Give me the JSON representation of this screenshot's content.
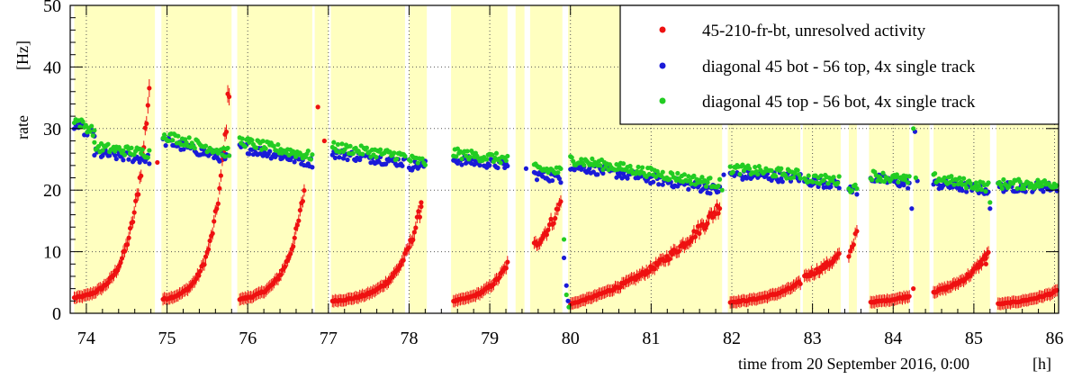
{
  "chart_data": {
    "type": "scatter",
    "title": "",
    "xlabel": "time from 20 September 2016, 0:00",
    "xunit": "[h]",
    "ylabel": "rate",
    "yunit": "[Hz]",
    "xlim": [
      73.8,
      86.05
    ],
    "ylim": [
      0,
      50
    ],
    "x_ticks": [
      74,
      75,
      76,
      77,
      78,
      79,
      80,
      81,
      82,
      83,
      84,
      85,
      86
    ],
    "y_ticks": [
      0,
      10,
      20,
      30,
      40,
      50
    ],
    "grid": "dotted",
    "legend": "top-right",
    "colors": {
      "red": "#ee1111",
      "blue": "#1a1ad8",
      "green": "#22cc22",
      "band": "#ffffc0"
    },
    "bands": [
      [
        73.85,
        74.85
      ],
      [
        74.93,
        75.8
      ],
      [
        75.87,
        76.8
      ],
      [
        76.83,
        77.0
      ],
      [
        77.03,
        77.95
      ],
      [
        78.0,
        78.22
      ],
      [
        78.52,
        79.22
      ],
      [
        79.32,
        79.43
      ],
      [
        79.5,
        79.9
      ],
      [
        79.97,
        81.88
      ],
      [
        81.95,
        82.85
      ],
      [
        82.88,
        83.35
      ],
      [
        83.45,
        83.55
      ],
      [
        83.7,
        84.2
      ],
      [
        84.25,
        84.45
      ],
      [
        84.5,
        85.2
      ],
      [
        85.28,
        86.05
      ]
    ],
    "series": [
      {
        "name": "45-210-fr-bt, unresolved activity",
        "color": "#ee1111",
        "segments": [
          {
            "x0": 73.85,
            "x1": 74.78,
            "y0": 2.5,
            "y1": 37.0,
            "k": 4.5
          },
          {
            "x0": 74.95,
            "x1": 75.77,
            "y0": 2.3,
            "y1": 37.0,
            "k": 4.5
          },
          {
            "x0": 75.9,
            "x1": 76.7,
            "y0": 2.3,
            "y1": 20.0,
            "k": 3.8
          },
          {
            "x0": 77.05,
            "x1": 78.15,
            "y0": 2.0,
            "y1": 17.5,
            "k": 4.0
          },
          {
            "x0": 78.55,
            "x1": 79.22,
            "y0": 2.0,
            "y1": 8.0,
            "k": 2.5
          },
          {
            "x0": 79.55,
            "x1": 79.88,
            "y0": 11.0,
            "y1": 18.0,
            "k": 1.0
          },
          {
            "x0": 80.0,
            "x1": 81.85,
            "y0": 1.5,
            "y1": 17.5,
            "k": 1.5
          },
          {
            "x0": 81.98,
            "x1": 82.85,
            "y0": 1.8,
            "y1": 5.0,
            "k": 2.0
          },
          {
            "x0": 82.9,
            "x1": 83.33,
            "y0": 6.0,
            "y1": 9.5,
            "k": 1.0
          },
          {
            "x0": 83.45,
            "x1": 83.55,
            "y0": 9.0,
            "y1": 14.0,
            "k": 1.0
          },
          {
            "x0": 83.72,
            "x1": 84.2,
            "y0": 1.8,
            "y1": 2.8,
            "k": 1.0
          },
          {
            "x0": 84.5,
            "x1": 85.18,
            "y0": 3.5,
            "y1": 10.0,
            "k": 2.0
          },
          {
            "x0": 85.3,
            "x1": 86.03,
            "y0": 1.5,
            "y1": 3.6,
            "k": 1.5
          }
        ],
        "extra_points": [
          [
            74.88,
            24.5
          ],
          [
            76.87,
            33.5
          ],
          [
            76.95,
            28.0
          ],
          [
            78.15,
            18.0
          ],
          [
            84.25,
            4.0
          ],
          [
            85.15,
            8.0
          ]
        ]
      },
      {
        "name": "diagonal 45 bot - 56 top, 4x single track",
        "color": "#1a1ad8",
        "segments": [
          {
            "x0": 73.85,
            "x1": 74.1,
            "y0": 30.5,
            "y1": 29.0
          },
          {
            "x0": 74.1,
            "x1": 74.78,
            "y0": 26.0,
            "y1": 25.0
          },
          {
            "x0": 74.95,
            "x1": 75.77,
            "y0": 28.0,
            "y1": 25.0
          },
          {
            "x0": 75.9,
            "x1": 76.8,
            "y0": 27.0,
            "y1": 24.5
          },
          {
            "x0": 77.05,
            "x1": 77.95,
            "y0": 26.0,
            "y1": 24.5
          },
          {
            "x0": 78.0,
            "x1": 78.2,
            "y0": 24.0,
            "y1": 24.0
          },
          {
            "x0": 78.55,
            "x1": 79.22,
            "y0": 25.0,
            "y1": 24.0
          },
          {
            "x0": 79.55,
            "x1": 79.88,
            "y0": 22.5,
            "y1": 22.0
          },
          {
            "x0": 80.0,
            "x1": 81.85,
            "y0": 24.0,
            "y1": 20.0
          },
          {
            "x0": 81.98,
            "x1": 82.85,
            "y0": 22.5,
            "y1": 22.0
          },
          {
            "x0": 82.9,
            "x1": 83.33,
            "y0": 21.5,
            "y1": 21.0
          },
          {
            "x0": 83.45,
            "x1": 83.55,
            "y0": 20.0,
            "y1": 20.0
          },
          {
            "x0": 83.72,
            "x1": 84.2,
            "y0": 22.0,
            "y1": 21.0
          },
          {
            "x0": 84.5,
            "x1": 85.18,
            "y0": 21.0,
            "y1": 20.0
          },
          {
            "x0": 85.3,
            "x1": 86.03,
            "y0": 20.5,
            "y1": 20.5
          }
        ],
        "extra_points": [
          [
            79.92,
            9.0
          ],
          [
            79.95,
            4.5
          ],
          [
            79.97,
            2.0
          ],
          [
            84.23,
            17.0
          ],
          [
            84.27,
            29.5
          ],
          [
            84.3,
            21.5
          ],
          [
            85.2,
            17.0
          ],
          [
            81.9,
            22.5
          ],
          [
            79.45,
            23.5
          ]
        ]
      },
      {
        "name": "diagonal 45 top - 56 bot, 4x single track",
        "color": "#22cc22",
        "segments": [
          {
            "x0": 73.85,
            "x1": 74.1,
            "y0": 31.5,
            "y1": 29.5
          },
          {
            "x0": 74.1,
            "x1": 74.78,
            "y0": 27.0,
            "y1": 26.0
          },
          {
            "x0": 74.95,
            "x1": 75.77,
            "y0": 29.0,
            "y1": 26.0
          },
          {
            "x0": 75.9,
            "x1": 76.8,
            "y0": 28.0,
            "y1": 25.5
          },
          {
            "x0": 77.05,
            "x1": 77.95,
            "y0": 27.0,
            "y1": 25.5
          },
          {
            "x0": 78.0,
            "x1": 78.2,
            "y0": 25.0,
            "y1": 24.5
          },
          {
            "x0": 78.55,
            "x1": 79.22,
            "y0": 26.0,
            "y1": 25.0
          },
          {
            "x0": 79.55,
            "x1": 79.88,
            "y0": 23.5,
            "y1": 23.0
          },
          {
            "x0": 80.0,
            "x1": 81.85,
            "y0": 25.0,
            "y1": 21.0
          },
          {
            "x0": 81.98,
            "x1": 82.85,
            "y0": 23.5,
            "y1": 22.5
          },
          {
            "x0": 82.9,
            "x1": 83.33,
            "y0": 22.0,
            "y1": 21.5
          },
          {
            "x0": 83.45,
            "x1": 83.55,
            "y0": 20.5,
            "y1": 20.5
          },
          {
            "x0": 83.72,
            "x1": 84.2,
            "y0": 22.5,
            "y1": 21.5
          },
          {
            "x0": 84.5,
            "x1": 85.18,
            "y0": 22.0,
            "y1": 20.5
          },
          {
            "x0": 85.3,
            "x1": 86.03,
            "y0": 21.0,
            "y1": 21.0
          }
        ],
        "extra_points": [
          [
            79.92,
            12.0
          ],
          [
            79.95,
            3.0
          ],
          [
            79.98,
            1.0
          ],
          [
            84.25,
            30.0
          ],
          [
            84.28,
            22.0
          ],
          [
            85.2,
            18.0
          ],
          [
            81.88,
            20.0
          ]
        ]
      }
    ]
  }
}
